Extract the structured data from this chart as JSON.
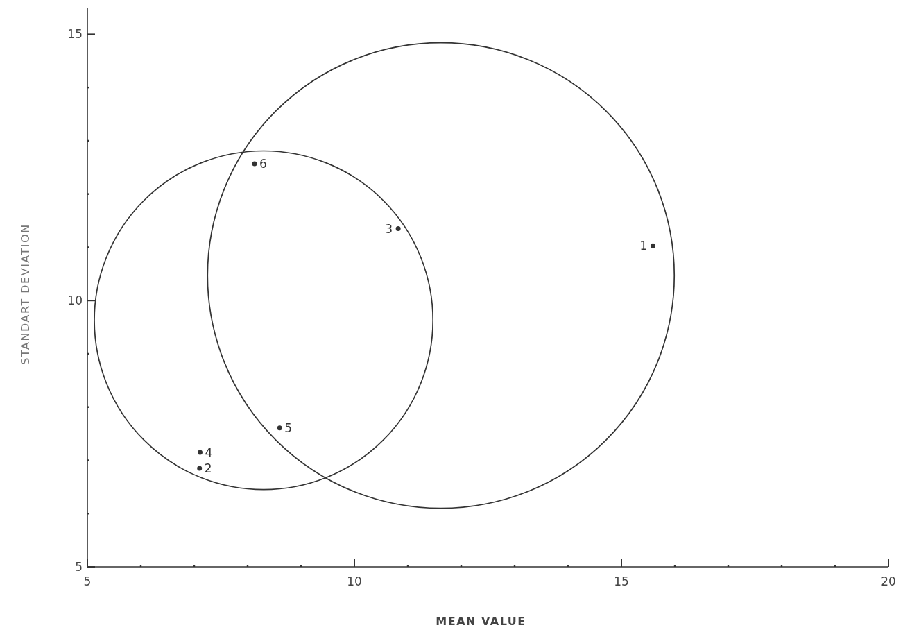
{
  "chart_data": {
    "type": "scatter",
    "xlabel": "MEAN VALUE",
    "ylabel": "STANDART DEVIATION",
    "xlim": [
      5,
      20
    ],
    "ylim": [
      5,
      15.5
    ],
    "xticks": [
      5,
      {
        "value": 6,
        "label": null
      },
      {
        "value": 7,
        "label": null
      },
      {
        "value": 8,
        "label": null
      },
      {
        "value": 9,
        "label": null
      },
      10,
      {
        "value": 11,
        "label": null
      },
      {
        "value": 12,
        "label": null
      },
      {
        "value": 13,
        "label": null
      },
      {
        "value": 14,
        "label": null
      },
      15,
      {
        "value": 16,
        "label": null
      },
      {
        "value": 17,
        "label": null
      },
      {
        "value": 18,
        "label": null
      },
      {
        "value": 19,
        "label": null
      },
      20
    ],
    "yticks": [
      5,
      {
        "value": 6,
        "label": null
      },
      {
        "value": 7,
        "label": null
      },
      {
        "value": 8,
        "label": null
      },
      {
        "value": 9,
        "label": null
      },
      10,
      {
        "value": 11,
        "label": null
      },
      {
        "value": 12,
        "label": null
      },
      {
        "value": 13,
        "label": null
      },
      {
        "value": 14,
        "label": null
      },
      15
    ],
    "marker": "circle",
    "series": [
      {
        "color": "#333333",
        "x": [
          15.59,
          7.1,
          10.82,
          7.11,
          8.6,
          8.13
        ],
        "values": [
          11.03,
          6.85,
          11.35,
          7.15,
          7.61,
          12.57
        ]
      }
    ],
    "annotations": [
      {
        "text": "1",
        "x": 15.59,
        "y": 11.03
      },
      {
        "text": "2",
        "x": 7.1,
        "y": 6.85
      },
      {
        "text": "3",
        "x": 10.82,
        "y": 11.35
      },
      {
        "text": "4",
        "x": 7.11,
        "y": 7.15
      },
      {
        "text": "5",
        "x": 8.6,
        "y": 7.61
      },
      {
        "text": "6",
        "x": 8.13,
        "y": 12.57
      }
    ]
  }
}
